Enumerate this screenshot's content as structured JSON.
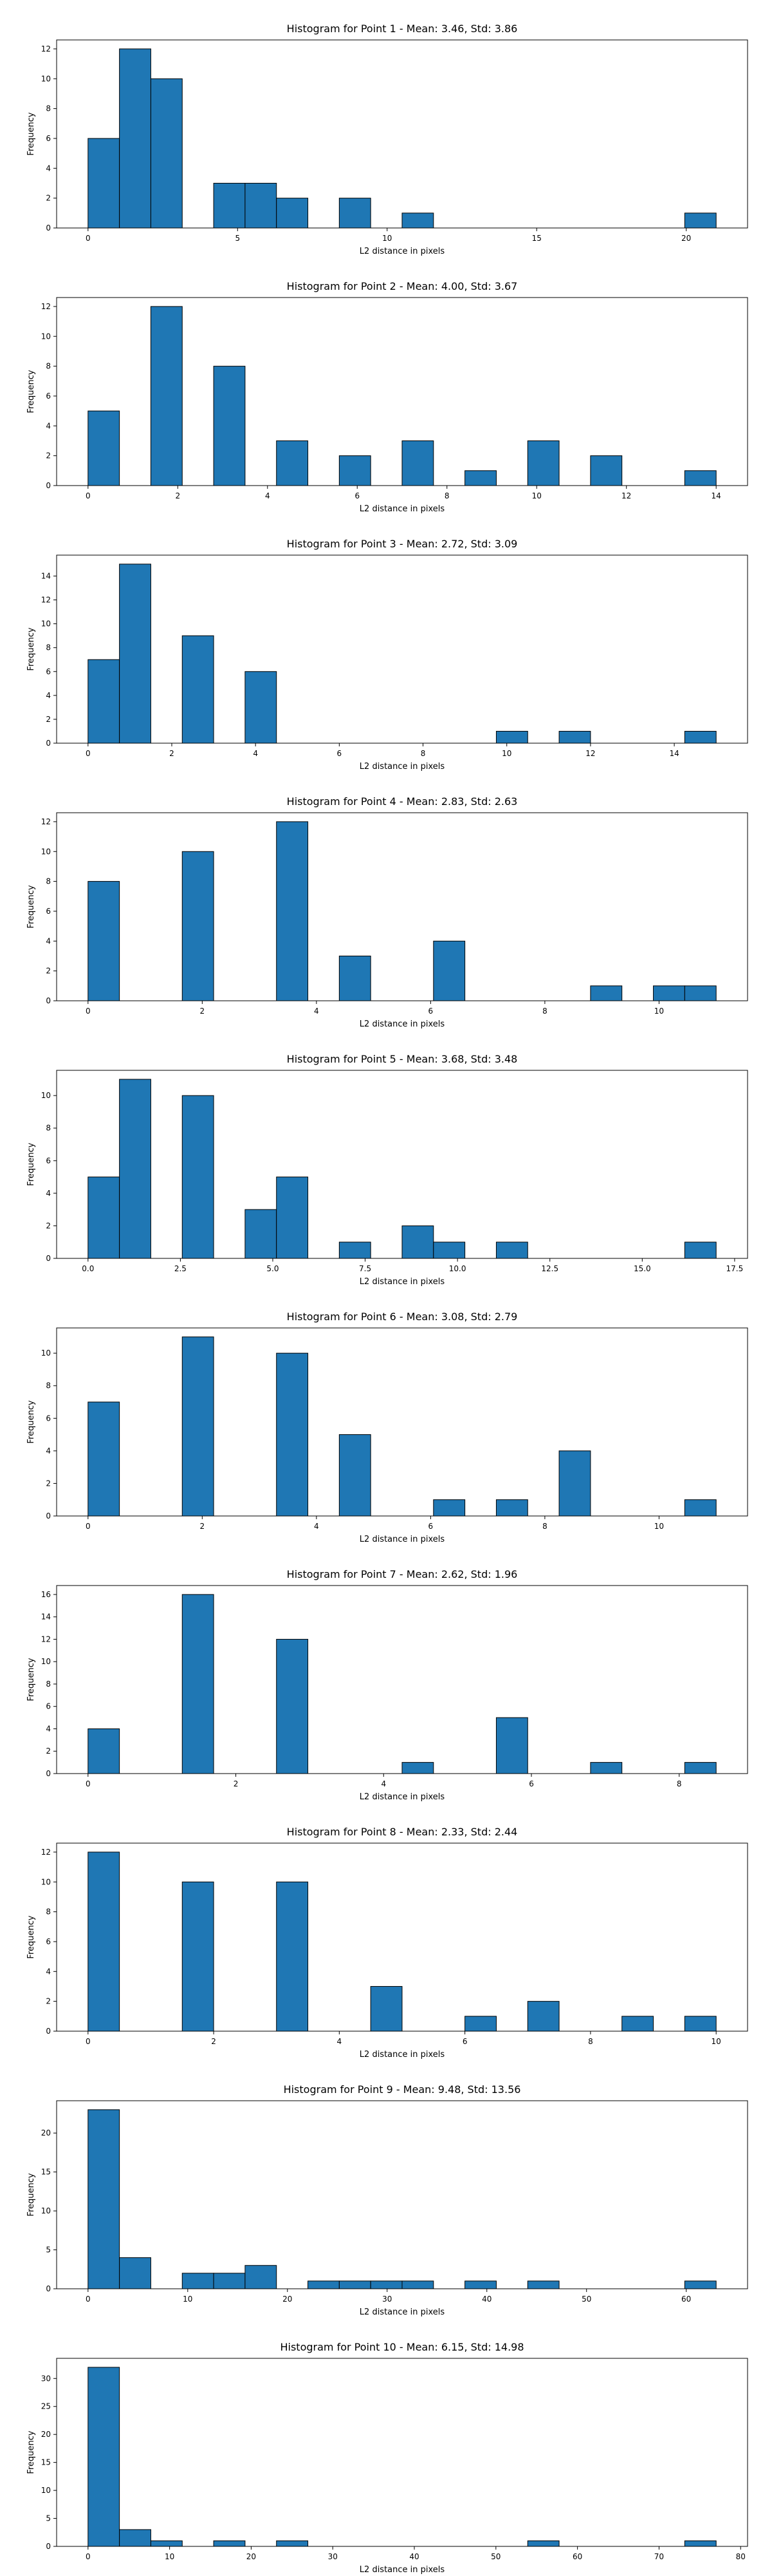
{
  "colors": {
    "bar_fill": "#1f77b4",
    "bar_edge": "#000000",
    "axes": "#000000",
    "background": "#ffffff"
  },
  "chart_data": [
    {
      "type": "bar",
      "title": "Histogram for Point 1 - Mean: 3.46, Std: 3.86",
      "xlabel": "L2 distance in pixels",
      "ylabel": "Frequency",
      "xlim": [
        -1.05,
        22.05
      ],
      "ylim": [
        0,
        12.6
      ],
      "xticks": [
        0,
        5,
        10,
        15,
        20
      ],
      "xtick_labels": [
        "0",
        "5",
        "10",
        "15",
        "20"
      ],
      "yticks": [
        0,
        2,
        4,
        6,
        8,
        10,
        12
      ],
      "ytick_labels": [
        "0",
        "2",
        "4",
        "6",
        "8",
        "10",
        "12"
      ],
      "grid": false,
      "bin_edges": [
        0,
        1.05,
        2.1,
        3.15,
        4.2,
        5.25,
        6.3,
        7.35,
        8.4,
        9.45,
        10.5,
        11.55,
        12.6,
        13.65,
        14.7,
        15.75,
        16.8,
        17.85,
        18.9,
        19.95,
        21.0
      ],
      "values": [
        6,
        12,
        10,
        0,
        3,
        3,
        2,
        0,
        2,
        0,
        1,
        0,
        0,
        0,
        0,
        0,
        0,
        0,
        0,
        1
      ]
    },
    {
      "type": "bar",
      "title": "Histogram for Point 2 - Mean: 4.00, Std: 3.67",
      "xlabel": "L2 distance in pixels",
      "ylabel": "Frequency",
      "xlim": [
        -0.7,
        14.7
      ],
      "ylim": [
        0,
        12.6
      ],
      "xticks": [
        0,
        2,
        4,
        6,
        8,
        10,
        12,
        14
      ],
      "xtick_labels": [
        "0",
        "2",
        "4",
        "6",
        "8",
        "10",
        "12",
        "14"
      ],
      "yticks": [
        0,
        2,
        4,
        6,
        8,
        10,
        12
      ],
      "ytick_labels": [
        "0",
        "2",
        "4",
        "6",
        "8",
        "10",
        "12"
      ],
      "grid": false,
      "bin_edges": [
        0,
        0.7,
        1.4,
        2.1,
        2.8,
        3.5,
        4.2,
        4.9,
        5.6,
        6.3,
        7.0,
        7.7,
        8.4,
        9.1,
        9.8,
        10.5,
        11.2,
        11.9,
        12.6,
        13.3,
        14.0
      ],
      "values": [
        5,
        0,
        12,
        0,
        8,
        0,
        3,
        0,
        2,
        0,
        3,
        0,
        1,
        0,
        3,
        0,
        2,
        0,
        0,
        1
      ]
    },
    {
      "type": "bar",
      "title": "Histogram for Point 3 - Mean: 2.72, Std: 3.09",
      "xlabel": "L2 distance in pixels",
      "ylabel": "Frequency",
      "xlim": [
        -0.75,
        15.75
      ],
      "ylim": [
        0,
        15.75
      ],
      "xticks": [
        0,
        2,
        4,
        6,
        8,
        10,
        12,
        14
      ],
      "xtick_labels": [
        "0",
        "2",
        "4",
        "6",
        "8",
        "10",
        "12",
        "14"
      ],
      "yticks": [
        0,
        2,
        4,
        6,
        8,
        10,
        12,
        14
      ],
      "ytick_labels": [
        "0",
        "2",
        "4",
        "6",
        "8",
        "10",
        "12",
        "14"
      ],
      "grid": false,
      "bin_edges": [
        0,
        0.75,
        1.5,
        2.25,
        3.0,
        3.75,
        4.5,
        5.25,
        6.0,
        6.75,
        7.5,
        8.25,
        9.0,
        9.75,
        10.5,
        11.25,
        12.0,
        12.75,
        13.5,
        14.25,
        15.0
      ],
      "values": [
        7,
        15,
        0,
        9,
        0,
        6,
        0,
        0,
        0,
        0,
        0,
        0,
        0,
        1,
        0,
        1,
        0,
        0,
        0,
        1
      ]
    },
    {
      "type": "bar",
      "title": "Histogram for Point 4 - Mean: 2.83, Std: 2.63",
      "xlabel": "L2 distance in pixels",
      "ylabel": "Frequency",
      "xlim": [
        -0.55,
        11.55
      ],
      "ylim": [
        0,
        12.6
      ],
      "xticks": [
        0,
        2,
        4,
        6,
        8,
        10
      ],
      "xtick_labels": [
        "0",
        "2",
        "4",
        "6",
        "8",
        "10"
      ],
      "yticks": [
        0,
        2,
        4,
        6,
        8,
        10,
        12
      ],
      "ytick_labels": [
        "0",
        "2",
        "4",
        "6",
        "8",
        "10",
        "12"
      ],
      "grid": false,
      "bin_edges": [
        0,
        0.55,
        1.1,
        1.65,
        2.2,
        2.75,
        3.3,
        3.85,
        4.4,
        4.95,
        5.5,
        6.05,
        6.6,
        7.15,
        7.7,
        8.25,
        8.8,
        9.35,
        9.9,
        10.45,
        11.0
      ],
      "values": [
        8,
        0,
        0,
        10,
        0,
        0,
        12,
        0,
        3,
        0,
        0,
        4,
        0,
        0,
        0,
        0,
        1,
        0,
        1,
        1
      ]
    },
    {
      "type": "bar",
      "title": "Histogram for Point 5 - Mean: 3.68, Std: 3.48",
      "xlabel": "L2 distance in pixels",
      "ylabel": "Frequency",
      "xlim": [
        -0.85,
        17.85
      ],
      "ylim": [
        0,
        11.55
      ],
      "xticks": [
        0,
        2.5,
        5,
        7.5,
        10,
        12.5,
        15,
        17.5
      ],
      "xtick_labels": [
        "0.0",
        "2.5",
        "5.0",
        "7.5",
        "10.0",
        "12.5",
        "15.0",
        "17.5"
      ],
      "yticks": [
        0,
        2,
        4,
        6,
        8,
        10
      ],
      "ytick_labels": [
        "0",
        "2",
        "4",
        "6",
        "8",
        "10"
      ],
      "grid": false,
      "bin_edges": [
        0,
        0.85,
        1.7,
        2.55,
        3.4,
        4.25,
        5.1,
        5.95,
        6.8,
        7.65,
        8.5,
        9.35,
        10.2,
        11.05,
        11.9,
        12.75,
        13.6,
        14.45,
        15.3,
        16.15,
        17.0
      ],
      "values": [
        5,
        11,
        0,
        10,
        0,
        3,
        5,
        0,
        1,
        0,
        2,
        1,
        0,
        1,
        0,
        0,
        0,
        0,
        0,
        1
      ]
    },
    {
      "type": "bar",
      "title": "Histogram for Point 6 - Mean: 3.08, Std: 2.79",
      "xlabel": "L2 distance in pixels",
      "ylabel": "Frequency",
      "xlim": [
        -0.55,
        11.55
      ],
      "ylim": [
        0,
        11.55
      ],
      "xticks": [
        0,
        2,
        4,
        6,
        8,
        10
      ],
      "xtick_labels": [
        "0",
        "2",
        "4",
        "6",
        "8",
        "10"
      ],
      "yticks": [
        0,
        2,
        4,
        6,
        8,
        10
      ],
      "ytick_labels": [
        "0",
        "2",
        "4",
        "6",
        "8",
        "10"
      ],
      "grid": false,
      "bin_edges": [
        0,
        0.55,
        1.1,
        1.65,
        2.2,
        2.75,
        3.3,
        3.85,
        4.4,
        4.95,
        5.5,
        6.05,
        6.6,
        7.15,
        7.7,
        8.25,
        8.8,
        9.35,
        9.9,
        10.45,
        11.0
      ],
      "values": [
        7,
        0,
        0,
        11,
        0,
        0,
        10,
        0,
        5,
        0,
        0,
        1,
        0,
        1,
        0,
        4,
        0,
        0,
        0,
        1
      ]
    },
    {
      "type": "bar",
      "title": "Histogram for Point 7 - Mean: 2.62, Std: 1.96",
      "xlabel": "L2 distance in pixels",
      "ylabel": "Frequency",
      "xlim": [
        -0.425,
        8.925
      ],
      "ylim": [
        0,
        16.8
      ],
      "xticks": [
        0,
        2,
        4,
        6,
        8
      ],
      "xtick_labels": [
        "0",
        "2",
        "4",
        "6",
        "8"
      ],
      "yticks": [
        0,
        2,
        4,
        6,
        8,
        10,
        12,
        14,
        16
      ],
      "ytick_labels": [
        "0",
        "2",
        "4",
        "6",
        "8",
        "10",
        "12",
        "14",
        "16"
      ],
      "grid": false,
      "bin_edges": [
        0,
        0.425,
        0.85,
        1.275,
        1.7,
        2.125,
        2.55,
        2.975,
        3.4,
        3.825,
        4.25,
        4.675,
        5.1,
        5.525,
        5.95,
        6.375,
        6.8,
        7.225,
        7.65,
        8.075,
        8.5
      ],
      "values": [
        4,
        0,
        0,
        16,
        0,
        0,
        12,
        0,
        0,
        0,
        1,
        0,
        0,
        5,
        0,
        0,
        1,
        0,
        0,
        1
      ]
    },
    {
      "type": "bar",
      "title": "Histogram for Point 8 - Mean: 2.33, Std: 2.44",
      "xlabel": "L2 distance in pixels",
      "ylabel": "Frequency",
      "xlim": [
        -0.5,
        10.5
      ],
      "ylim": [
        0,
        12.6
      ],
      "xticks": [
        0,
        2,
        4,
        6,
        8,
        10
      ],
      "xtick_labels": [
        "0",
        "2",
        "4",
        "6",
        "8",
        "10"
      ],
      "yticks": [
        0,
        2,
        4,
        6,
        8,
        10,
        12
      ],
      "ytick_labels": [
        "0",
        "2",
        "4",
        "6",
        "8",
        "10",
        "12"
      ],
      "grid": false,
      "bin_edges": [
        0,
        0.5,
        1.0,
        1.5,
        2.0,
        2.5,
        3.0,
        3.5,
        4.0,
        4.5,
        5.0,
        5.5,
        6.0,
        6.5,
        7.0,
        7.5,
        8.0,
        8.5,
        9.0,
        9.5,
        10.0
      ],
      "values": [
        12,
        0,
        0,
        10,
        0,
        0,
        10,
        0,
        0,
        3,
        0,
        0,
        1,
        0,
        2,
        0,
        0,
        1,
        0,
        1
      ]
    },
    {
      "type": "bar",
      "title": "Histogram for Point 9 - Mean: 9.48, Std: 13.56",
      "xlabel": "L2 distance in pixels",
      "ylabel": "Frequency",
      "xlim": [
        -3.15,
        66.15
      ],
      "ylim": [
        0,
        24.15
      ],
      "xticks": [
        0,
        10,
        20,
        30,
        40,
        50,
        60
      ],
      "xtick_labels": [
        "0",
        "10",
        "20",
        "30",
        "40",
        "50",
        "60"
      ],
      "yticks": [
        0,
        5,
        10,
        15,
        20
      ],
      "ytick_labels": [
        "0",
        "5",
        "10",
        "15",
        "20"
      ],
      "grid": false,
      "bin_edges": [
        0,
        3.15,
        6.3,
        9.45,
        12.6,
        15.75,
        18.9,
        22.05,
        25.2,
        28.35,
        31.5,
        34.65,
        37.8,
        40.95,
        44.1,
        47.25,
        50.4,
        53.55,
        56.7,
        59.85,
        63.0
      ],
      "values": [
        23,
        4,
        0,
        2,
        2,
        3,
        0,
        1,
        1,
        1,
        1,
        0,
        1,
        0,
        1,
        0,
        0,
        0,
        0,
        1
      ]
    },
    {
      "type": "bar",
      "title": "Histogram for Point 10 - Mean: 6.15, Std: 14.98",
      "xlabel": "L2 distance in pixels",
      "ylabel": "Frequency",
      "xlim": [
        -3.85,
        80.85
      ],
      "ylim": [
        0,
        33.6
      ],
      "xticks": [
        0,
        10,
        20,
        30,
        40,
        50,
        60,
        70,
        80
      ],
      "xtick_labels": [
        "0",
        "10",
        "20",
        "30",
        "40",
        "50",
        "60",
        "70",
        "80"
      ],
      "yticks": [
        0,
        5,
        10,
        15,
        20,
        25,
        30
      ],
      "ytick_labels": [
        "0",
        "5",
        "10",
        "15",
        "20",
        "25",
        "30"
      ],
      "grid": false,
      "bin_edges": [
        0,
        3.85,
        7.7,
        11.55,
        15.4,
        19.25,
        23.1,
        26.95,
        30.8,
        34.65,
        38.5,
        42.35,
        46.2,
        50.05,
        53.9,
        57.75,
        61.6,
        65.45,
        69.3,
        73.15,
        77.0
      ],
      "values": [
        32,
        3,
        1,
        0,
        1,
        0,
        1,
        0,
        0,
        0,
        0,
        0,
        0,
        0,
        1,
        0,
        0,
        0,
        0,
        1
      ]
    }
  ]
}
